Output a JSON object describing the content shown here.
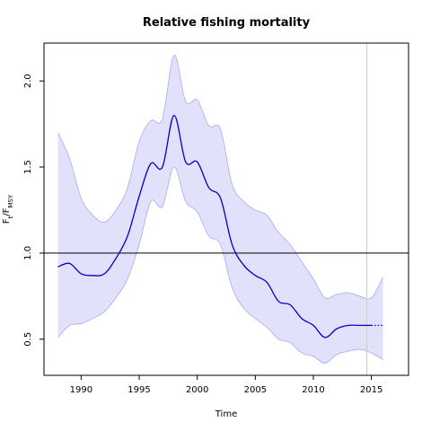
{
  "chart_data": {
    "type": "line",
    "title": "Relative fishing mortality",
    "xlabel": "Time",
    "ylabel": {
      "main": "F",
      "main_sub": "t",
      "sep": "/F",
      "denom_sub": "MSY"
    },
    "xlim": [
      1986.8,
      2018.2
    ],
    "ylim": [
      0.29,
      2.22
    ],
    "x_ticks": [
      1990,
      1995,
      2000,
      2005,
      2010,
      2015
    ],
    "y_ticks": [
      0.5,
      1.0,
      1.5,
      2.0
    ],
    "x_tick_labels": [
      "1990",
      "1995",
      "2000",
      "2005",
      "2010",
      "2015"
    ],
    "y_tick_labels": [
      "0.5",
      "1.0",
      "1.5",
      "2.0"
    ],
    "reference_line": 1.0,
    "vertical_line": 2014.6,
    "estimate_end": 2015.0,
    "colors": {
      "estimate": "#0000cc",
      "ci_fill": "#e1e1fb",
      "ci_edge": "#aaaaee",
      "reference": "#000000",
      "vertical": "#cccccc"
    },
    "series": [
      {
        "x": [
          1988,
          1989,
          1990,
          1991,
          1992,
          1993,
          1994,
          1995,
          1996,
          1997,
          1998,
          1999,
          2000,
          2001,
          2002,
          2003,
          2004,
          2005,
          2006,
          2007,
          2008,
          2009,
          2010,
          2011,
          2012,
          2013,
          2014,
          2015,
          2016
        ],
        "y": [
          0.92,
          0.94,
          0.88,
          0.87,
          0.88,
          0.97,
          1.1,
          1.33,
          1.52,
          1.5,
          1.8,
          1.53,
          1.53,
          1.38,
          1.32,
          1.05,
          0.93,
          0.87,
          0.83,
          0.72,
          0.7,
          0.62,
          0.58,
          0.51,
          0.56,
          0.58,
          0.58,
          0.58,
          0.58
        ],
        "lower": [
          0.51,
          0.58,
          0.59,
          0.62,
          0.66,
          0.74,
          0.85,
          1.05,
          1.3,
          1.27,
          1.5,
          1.3,
          1.24,
          1.1,
          1.05,
          0.8,
          0.68,
          0.62,
          0.57,
          0.5,
          0.48,
          0.42,
          0.4,
          0.36,
          0.41,
          0.43,
          0.44,
          0.42,
          0.38
        ],
        "upper": [
          1.7,
          1.55,
          1.32,
          1.22,
          1.18,
          1.25,
          1.38,
          1.65,
          1.77,
          1.78,
          2.15,
          1.88,
          1.89,
          1.74,
          1.72,
          1.4,
          1.3,
          1.25,
          1.22,
          1.12,
          1.05,
          0.95,
          0.85,
          0.74,
          0.76,
          0.77,
          0.75,
          0.74,
          0.86
        ]
      }
    ]
  }
}
